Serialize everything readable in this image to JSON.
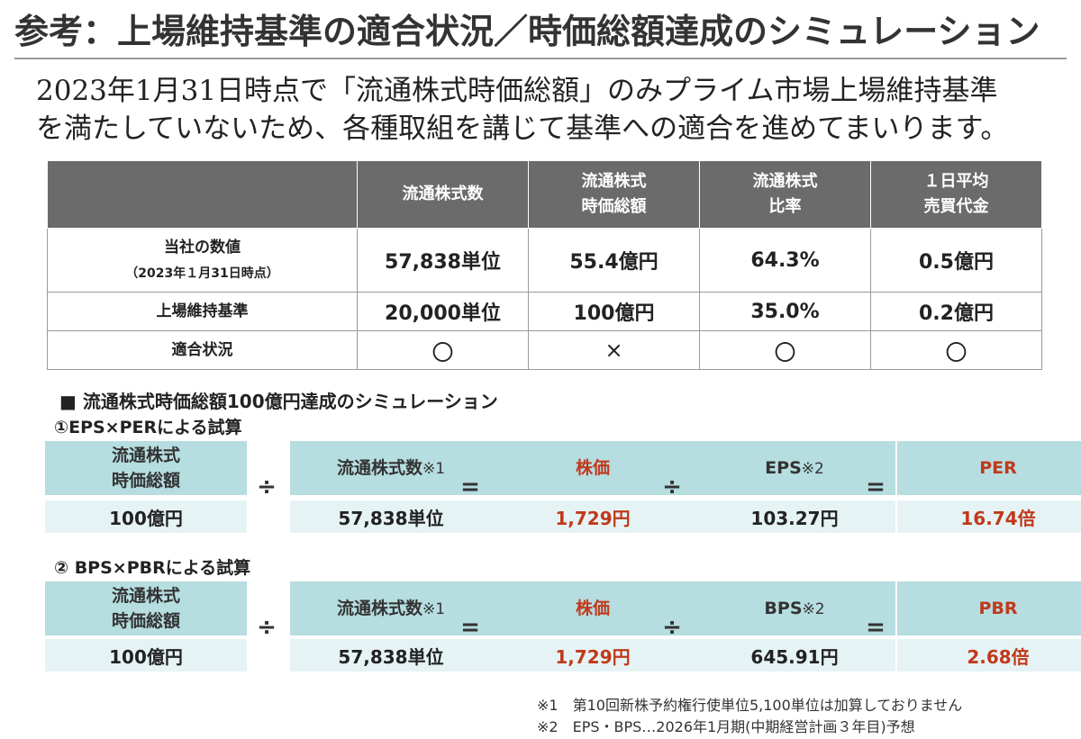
{
  "title": "参考：上場維持基準の適合状況／時価総額達成のシミュレーション",
  "intro": {
    "line1": "2023年1月31日時点で「流通株式時価総額」のみプライム市場上場維持基準",
    "line2": "を満たしていないため、各種取組を講じて基準への適合を進めてまいります。"
  },
  "table": {
    "headers": [
      {
        "line1": "",
        "line2": ""
      },
      {
        "line1": "流通株式数",
        "line2": ""
      },
      {
        "line1": "流通株式",
        "line2": "時価総額"
      },
      {
        "line1": "流通株式",
        "line2": "比率"
      },
      {
        "line1": "１日平均",
        "line2": "売買代金"
      }
    ],
    "rows": [
      {
        "label": "当社の数値",
        "sublabel": "（2023年１月31日時点）",
        "cells": [
          "57,838単位",
          "55.4億円",
          "64.3%",
          "0.5億円"
        ]
      },
      {
        "label": "上場維持基準",
        "sublabel": "",
        "cells": [
          "20,000単位",
          "100億円",
          "35.0%",
          "0.2億円"
        ]
      },
      {
        "label": "適合状況",
        "sublabel": "",
        "cells": [
          "〇",
          "×",
          "〇",
          "〇"
        ]
      }
    ]
  },
  "simulation": {
    "title": "■ 流通株式時価総額100億円達成のシミュレーション",
    "sim1": {
      "subtitle": "①EPS×PERによる試算",
      "boxes": [
        {
          "line1": "流通株式",
          "line2": "時価総額",
          "note": ""
        },
        {
          "line1": "流通株式数",
          "line2": "",
          "note": "※1"
        },
        {
          "line1": "株価",
          "line2": "",
          "note": ""
        },
        {
          "line1": "EPS",
          "line2": "",
          "note": "※2"
        },
        {
          "line1": "PER",
          "line2": "",
          "note": ""
        }
      ],
      "values": [
        "100億円",
        "57,838単位",
        "1,729円",
        "103.27円",
        "16.74倍"
      ],
      "operators": [
        "÷",
        "=",
        "÷",
        "="
      ]
    },
    "sim2": {
      "subtitle": "② BPS×PBRによる試算",
      "boxes": [
        {
          "line1": "流通株式",
          "line2": "時価総額",
          "note": ""
        },
        {
          "line1": "流通株式数",
          "line2": "",
          "note": "※1"
        },
        {
          "line1": "株価",
          "line2": "",
          "note": ""
        },
        {
          "line1": "BPS",
          "line2": "",
          "note": "※2"
        },
        {
          "line1": "PBR",
          "line2": "",
          "note": ""
        }
      ],
      "values": [
        "100億円",
        "57,838単位",
        "1,729円",
        "645.91円",
        "2.68倍"
      ],
      "operators": [
        "÷",
        "=",
        "÷",
        "="
      ]
    }
  },
  "footnotes": [
    "※1　第10回新株予約権行使単位5,100単位は加算しておりません",
    "※2　EPS・BPS…2026年1月期(中期経営計画３年目)予想"
  ],
  "colors": {
    "header_bg": "#6b6b6b",
    "box_bg": "#b6dde0",
    "value_bg": "#e6f3f4",
    "accent_red": "#c0391b"
  }
}
